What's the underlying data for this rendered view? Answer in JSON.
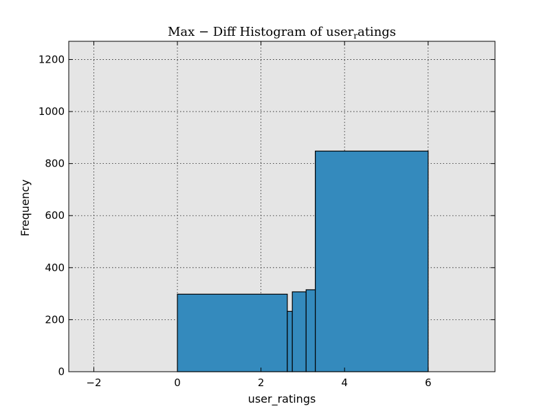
{
  "chart_data": {
    "type": "bar",
    "title_main": "Max − Diff Histogram of user",
    "title_sub": "r",
    "title_rest": "atings",
    "xlabel": "user_ratings",
    "ylabel": "Frequency",
    "xlim": [
      -2.6,
      7.6
    ],
    "ylim": [
      0,
      1270
    ],
    "xticks": [
      -2,
      0,
      2,
      4,
      6
    ],
    "xtick_labels": [
      "−2",
      "0",
      "2",
      "4",
      "6"
    ],
    "yticks": [
      0,
      200,
      400,
      600,
      800,
      1000,
      1200
    ],
    "ytick_labels": [
      "0",
      "200",
      "400",
      "600",
      "800",
      "1000",
      "1200"
    ],
    "grid": true,
    "bins": [
      {
        "x0": 0.0,
        "x1": 2.63,
        "value": 298
      },
      {
        "x0": 2.63,
        "x1": 2.75,
        "value": 232
      },
      {
        "x0": 2.75,
        "x1": 3.08,
        "value": 307
      },
      {
        "x0": 3.08,
        "x1": 3.3,
        "value": 315
      },
      {
        "x0": 3.3,
        "x1": 6.0,
        "value": 848
      }
    ],
    "colors": {
      "bar": "#348abd",
      "plot_bg": "#e5e5e5"
    }
  }
}
